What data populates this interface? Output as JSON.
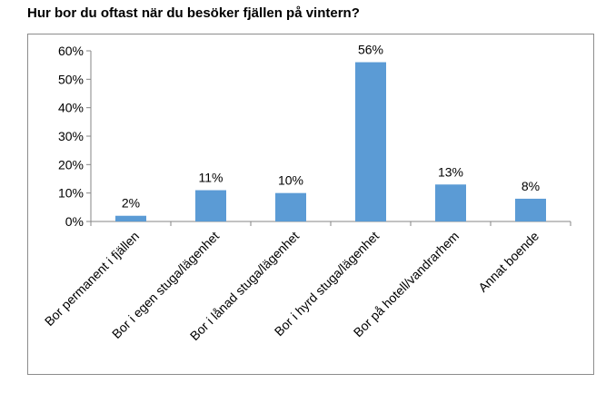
{
  "title": "Hur bor du oftast när du besöker fjällen på vintern?",
  "chart_data": {
    "type": "bar",
    "title": "Hur bor du oftast när du besöker fjällen på vintern?",
    "xlabel": "",
    "ylabel": "",
    "ylim": [
      0,
      60
    ],
    "yticks": [
      "0%",
      "10%",
      "20%",
      "30%",
      "40%",
      "50%",
      "60%"
    ],
    "grid": false,
    "legend": "none",
    "bar_color": "#5b9bd5",
    "categories": [
      "Bor permanent i fjällen",
      "Bor i egen stuga/lägenhet",
      "Bor i lånad stuga/lägenhet",
      "Bor i hyrd stuga/lägenhet",
      "Bor på hotell/vandrarhem",
      "Annat boende"
    ],
    "values": [
      2,
      11,
      10,
      56,
      13,
      8
    ],
    "data_labels": [
      "2%",
      "11%",
      "10%",
      "56%",
      "13%",
      "8%"
    ]
  }
}
